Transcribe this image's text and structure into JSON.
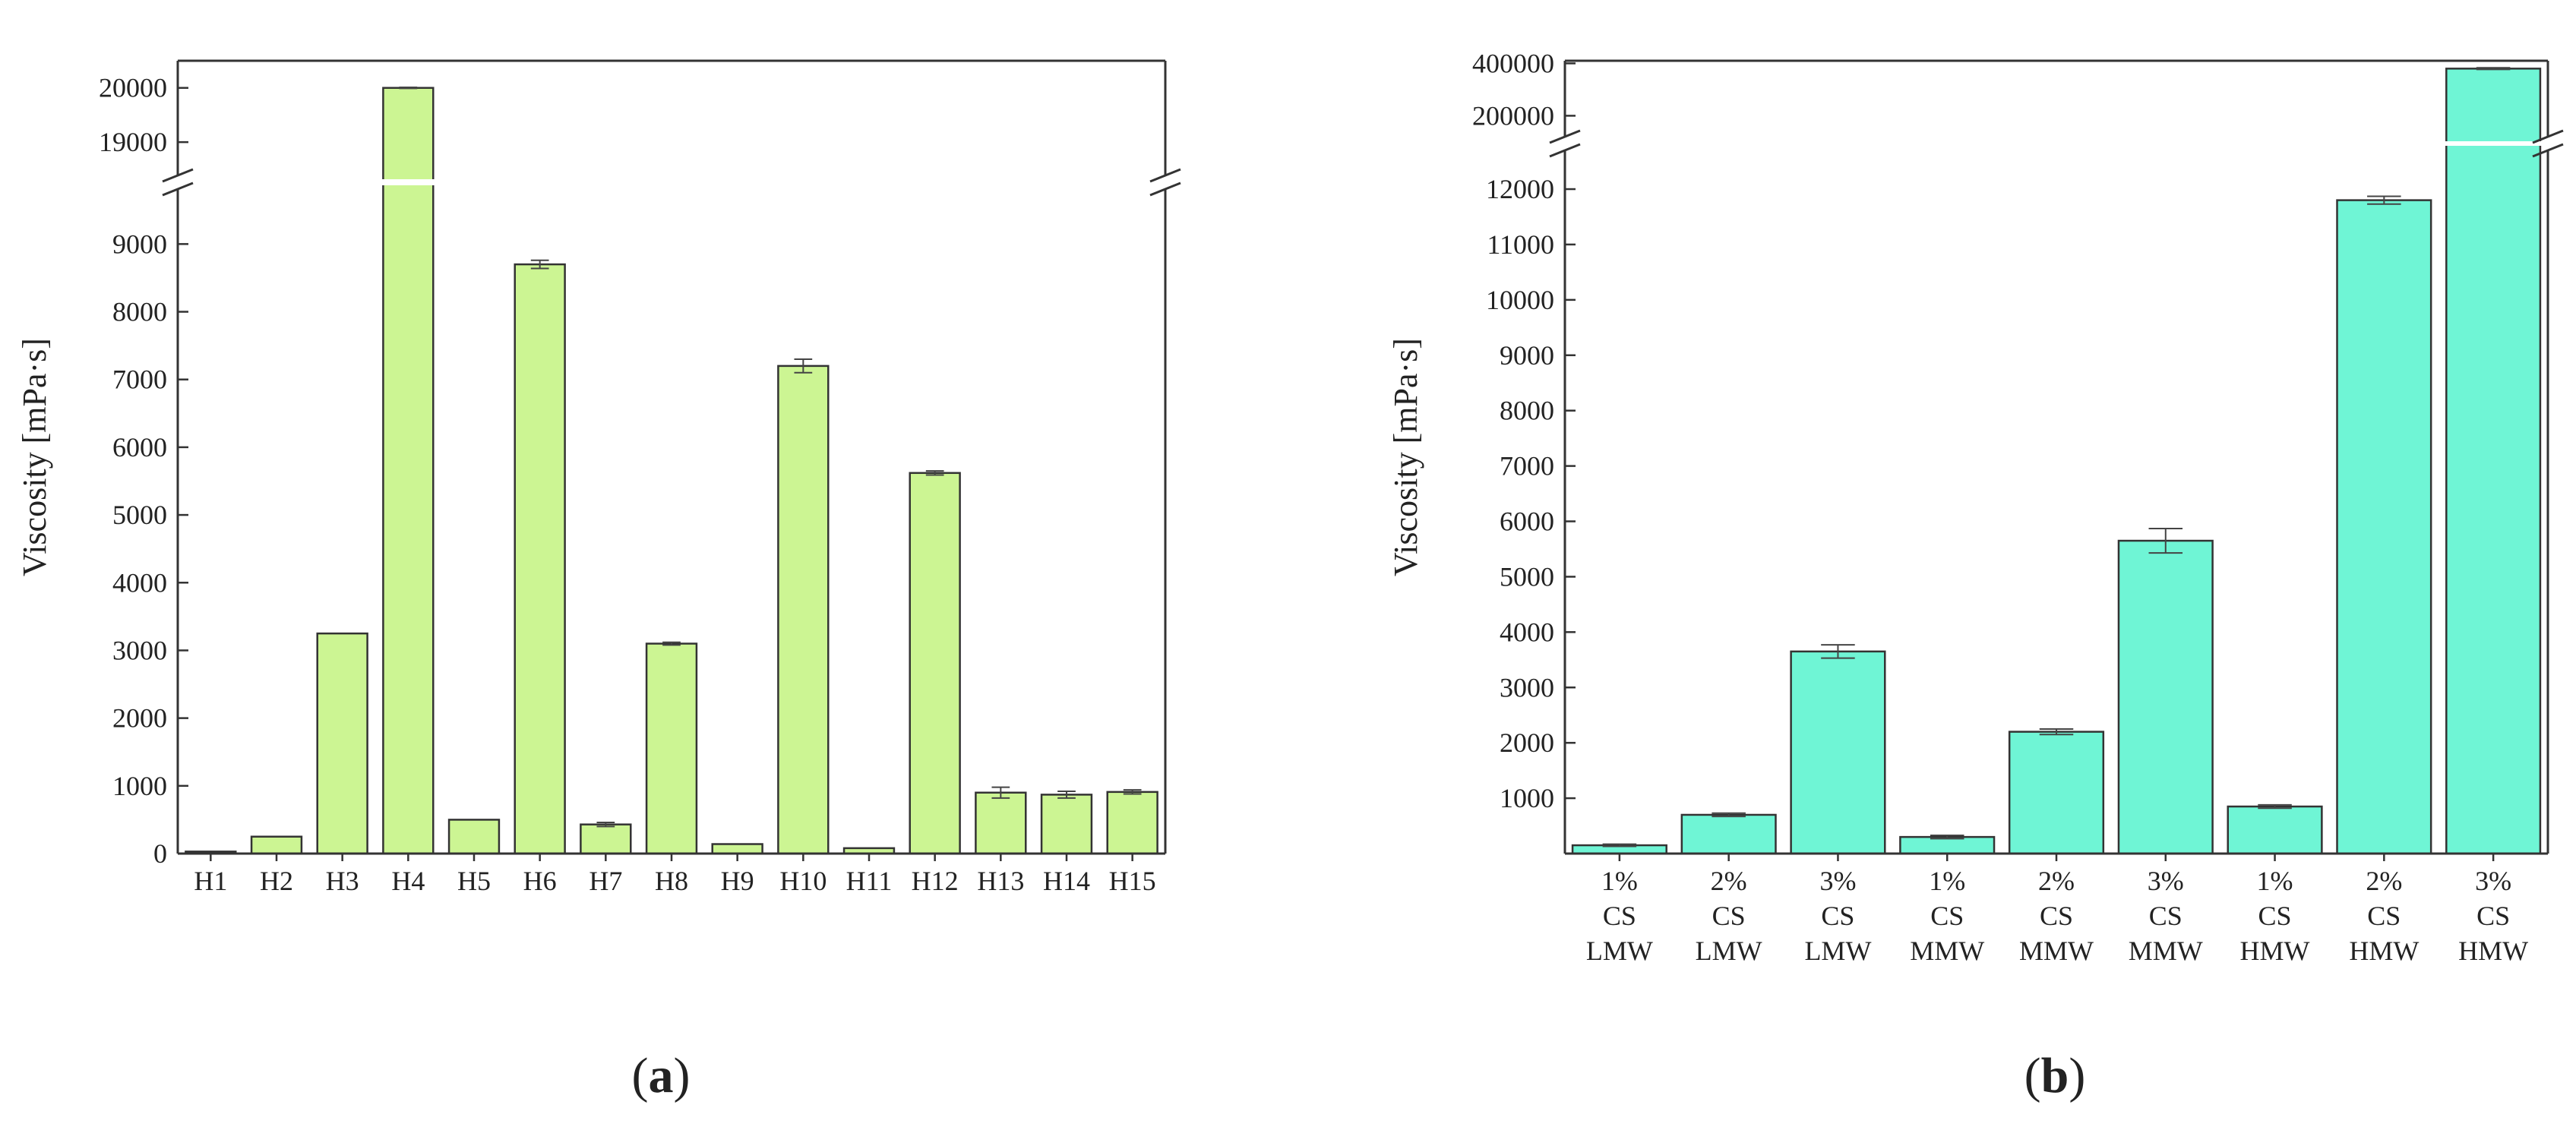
{
  "chart_data": [
    {
      "type": "bar",
      "panel_label": "(a)",
      "panel_label_parts": {
        "open": "(",
        "letter": "a",
        "close": ")"
      },
      "ylabel": "Viscosity [mPa·s]",
      "xlabel": "",
      "categories": [
        "H1",
        "H2",
        "H3",
        "H4",
        "H5",
        "H6",
        "H7",
        "H8",
        "H9",
        "H10",
        "H11",
        "H12",
        "H13",
        "H14",
        "H15"
      ],
      "values": [
        30,
        250,
        3250,
        20000,
        500,
        8700,
        430,
        3100,
        140,
        7200,
        80,
        5620,
        900,
        870,
        910
      ],
      "errors": [
        0,
        0,
        0,
        10,
        0,
        60,
        30,
        20,
        0,
        100,
        0,
        30,
        80,
        50,
        30
      ],
      "y_axis_break": true,
      "ylim_lower": [
        0,
        9800
      ],
      "ylim_upper": [
        18400,
        20500
      ],
      "yticks_lower": [
        0,
        1000,
        2000,
        3000,
        4000,
        5000,
        6000,
        7000,
        8000,
        9000
      ],
      "yticks_upper": [
        19000,
        20000
      ],
      "bar_color": "#ccf593",
      "grid": false,
      "legend": "none"
    },
    {
      "type": "bar",
      "panel_label": "(b)",
      "panel_label_parts": {
        "open": "(",
        "letter": "b",
        "close": ")"
      },
      "ylabel": "Viscosity [mPa·s]",
      "xlabel": "",
      "categories": [
        "1%\nCS\nLMW",
        "2%\nCS\nLMW",
        "3%\nCS\nLMW",
        "1%\nCS\nMMW",
        "2%\nCS\nMMW",
        "3%\nCS\nMMW",
        "1%\nCS\nHMW",
        "2%\nCS\nHMW",
        "3%\nCS\nHMW"
      ],
      "values": [
        150,
        700,
        3650,
        300,
        2200,
        5650,
        850,
        11800,
        380000
      ],
      "errors": [
        20,
        30,
        120,
        30,
        50,
        220,
        30,
        70,
        3000
      ],
      "y_axis_break": true,
      "ylim_lower": [
        0,
        12700
      ],
      "ylim_upper": [
        120000,
        410000
      ],
      "yticks_lower": [
        1000,
        2000,
        3000,
        4000,
        5000,
        6000,
        7000,
        8000,
        9000,
        10000,
        11000,
        12000
      ],
      "yticks_upper": [
        200000,
        400000
      ],
      "bar_color": "#6ff5d5",
      "grid": false,
      "legend": "none"
    }
  ]
}
